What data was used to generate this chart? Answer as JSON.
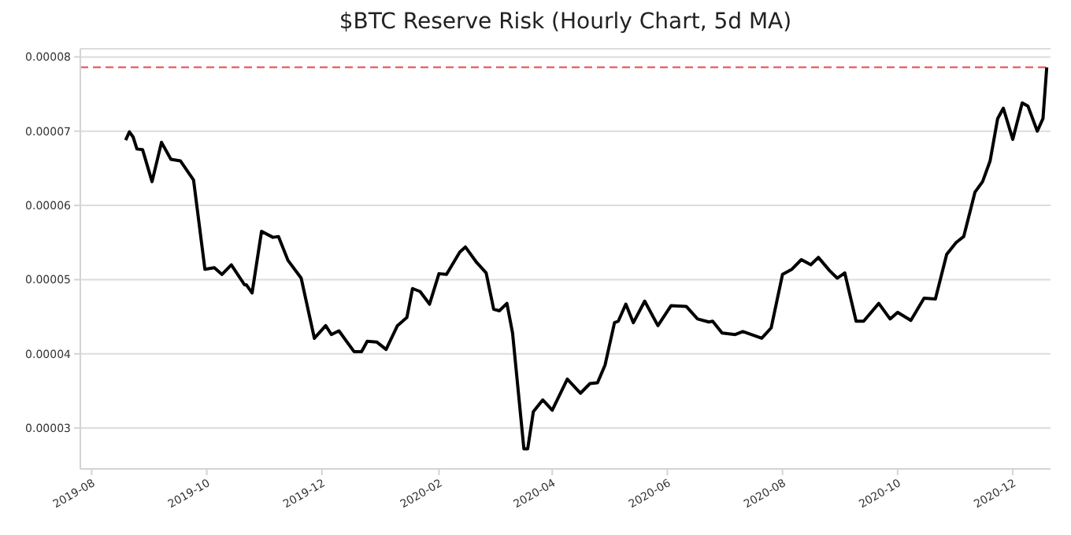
{
  "chart_data": {
    "type": "line",
    "title": "$BTC Reserve Risk (Hourly Chart, 5d MA)",
    "x": [
      "2019-08-19",
      "2019-08-21",
      "2019-08-23",
      "2019-08-25",
      "2019-08-28",
      "2019-09-02",
      "2019-09-07",
      "2019-09-12",
      "2019-09-17",
      "2019-09-24",
      "2019-09-30",
      "2019-10-05",
      "2019-10-09",
      "2019-10-14",
      "2019-10-21",
      "2019-10-22",
      "2019-10-25",
      "2019-10-30",
      "2019-11-05",
      "2019-11-08",
      "2019-11-13",
      "2019-11-20",
      "2019-11-27",
      "2019-12-03",
      "2019-12-06",
      "2019-12-10",
      "2019-12-18",
      "2019-12-22",
      "2019-12-25",
      "2019-12-30",
      "2020-01-04",
      "2020-01-10",
      "2020-01-15",
      "2020-01-18",
      "2020-01-22",
      "2020-01-27",
      "2020-02-01",
      "2020-02-05",
      "2020-02-12",
      "2020-02-15",
      "2020-02-21",
      "2020-02-26",
      "2020-03-01",
      "2020-03-04",
      "2020-03-08",
      "2020-03-11",
      "2020-03-17",
      "2020-03-19",
      "2020-03-22",
      "2020-03-27",
      "2020-04-01",
      "2020-04-09",
      "2020-04-16",
      "2020-04-21",
      "2020-04-25",
      "2020-04-29",
      "2020-05-04",
      "2020-05-06",
      "2020-05-10",
      "2020-05-14",
      "2020-05-20",
      "2020-05-27",
      "2020-06-03",
      "2020-06-11",
      "2020-06-17",
      "2020-06-23",
      "2020-06-25",
      "2020-06-30",
      "2020-07-07",
      "2020-07-11",
      "2020-07-21",
      "2020-07-26",
      "2020-08-01",
      "2020-08-06",
      "2020-08-11",
      "2020-08-16",
      "2020-08-20",
      "2020-08-26",
      "2020-08-30",
      "2020-09-03",
      "2020-09-09",
      "2020-09-13",
      "2020-09-21",
      "2020-09-27",
      "2020-10-01",
      "2020-10-08",
      "2020-10-15",
      "2020-10-21",
      "2020-10-27",
      "2020-11-01",
      "2020-11-05",
      "2020-11-11",
      "2020-11-15",
      "2020-11-19",
      "2020-11-23",
      "2020-11-26",
      "2020-12-01",
      "2020-12-06",
      "2020-12-09",
      "2020-12-14",
      "2020-12-17",
      "2020-12-19"
    ],
    "series": [
      {
        "color": "#000000",
        "values": [
          6.88e-05,
          6.99e-05,
          6.92e-05,
          6.76e-05,
          6.75e-05,
          6.32e-05,
          6.85e-05,
          6.62e-05,
          6.6e-05,
          6.34e-05,
          5.14e-05,
          5.16e-05,
          5.07e-05,
          5.2e-05,
          4.93e-05,
          4.93e-05,
          4.82e-05,
          5.65e-05,
          5.57e-05,
          5.58e-05,
          5.26e-05,
          5.02e-05,
          4.21e-05,
          4.38e-05,
          4.26e-05,
          4.31e-05,
          4.03e-05,
          4.03e-05,
          4.17e-05,
          4.16e-05,
          4.06e-05,
          4.38e-05,
          4.49e-05,
          4.88e-05,
          4.84e-05,
          4.67e-05,
          5.08e-05,
          5.07e-05,
          5.37e-05,
          5.44e-05,
          5.23e-05,
          5.09e-05,
          4.6e-05,
          4.58e-05,
          4.68e-05,
          4.28e-05,
          2.72e-05,
          2.72e-05,
          3.22e-05,
          3.38e-05,
          3.24e-05,
          3.66e-05,
          3.47e-05,
          3.6e-05,
          3.61e-05,
          3.85e-05,
          4.42e-05,
          4.44e-05,
          4.67e-05,
          4.42e-05,
          4.71e-05,
          4.38e-05,
          4.65e-05,
          4.64e-05,
          4.47e-05,
          4.43e-05,
          4.44e-05,
          4.28e-05,
          4.26e-05,
          4.3e-05,
          4.21e-05,
          4.35e-05,
          5.07e-05,
          5.14e-05,
          5.27e-05,
          5.2e-05,
          5.3e-05,
          5.12e-05,
          5.02e-05,
          5.09e-05,
          4.44e-05,
          4.44e-05,
          4.68e-05,
          4.47e-05,
          4.56e-05,
          4.45e-05,
          4.75e-05,
          4.74e-05,
          5.34e-05,
          5.5e-05,
          5.58e-05,
          6.18e-05,
          6.32e-05,
          6.6e-05,
          7.17e-05,
          7.31e-05,
          6.89e-05,
          7.38e-05,
          7.34e-05,
          7e-05,
          7.17e-05,
          7.86e-05
        ]
      }
    ],
    "xlim": [
      "2019-07-26",
      "2020-12-21"
    ],
    "xticks": [
      "2019-08",
      "2019-10",
      "2019-12",
      "2020-02",
      "2020-04",
      "2020-06",
      "2020-08",
      "2020-10",
      "2020-12"
    ],
    "ylim": [
      2.45e-05,
      8.11e-05
    ],
    "yticks": [
      {
        "value": 3e-05,
        "label": "0.00003"
      },
      {
        "value": 4e-05,
        "label": "0.00004"
      },
      {
        "value": 5e-05,
        "label": "0.00005"
      },
      {
        "value": 6e-05,
        "label": "0.00006"
      },
      {
        "value": 7e-05,
        "label": "0.00007"
      },
      {
        "value": 8e-05,
        "label": "0.00008"
      }
    ],
    "ref_lines": [
      {
        "axis": "y",
        "value": 7.86e-05,
        "color": "#e8474f",
        "line_style": "dashed"
      }
    ],
    "grid": "y",
    "marker": "none",
    "line_style": "solid"
  }
}
